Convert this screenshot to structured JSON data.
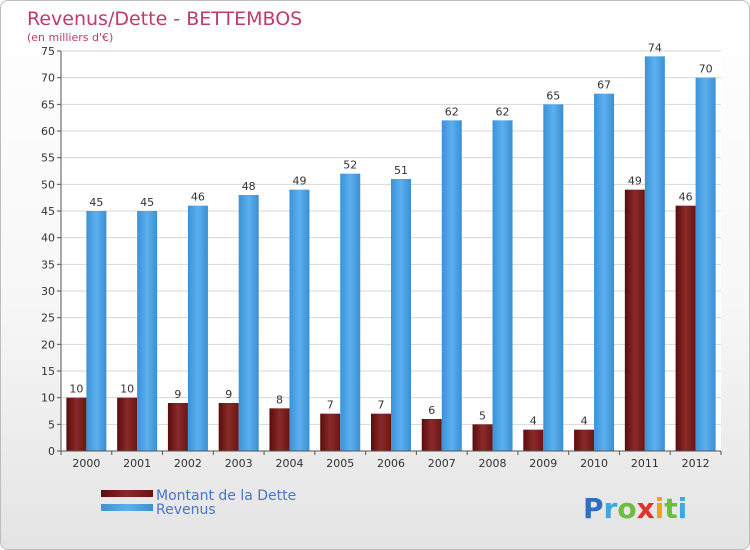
{
  "chart_data": {
    "type": "bar",
    "title": "Revenus/Dette - BETTEMBOS",
    "subtitle": "(en milliers d'€)",
    "categories": [
      "2000",
      "2001",
      "2002",
      "2003",
      "2004",
      "2005",
      "2006",
      "2007",
      "2008",
      "2009",
      "2010",
      "2011",
      "2012"
    ],
    "series": [
      {
        "name": "Montant de la Dette",
        "values": [
          10,
          10,
          9,
          9,
          8,
          7,
          7,
          6,
          5,
          4,
          4,
          49,
          46
        ],
        "color": "#7a1a1a"
      },
      {
        "name": "Revenus",
        "values": [
          45,
          45,
          46,
          48,
          49,
          52,
          51,
          62,
          62,
          65,
          67,
          74,
          70
        ],
        "color": "#4aa3e6"
      }
    ],
    "ylim": [
      0,
      75
    ],
    "yticks": [
      0,
      5,
      10,
      15,
      20,
      25,
      30,
      35,
      40,
      45,
      50,
      55,
      60,
      65,
      70,
      75
    ],
    "grid": true,
    "legend_position": "bottom-left"
  },
  "logo_text": "Proxiti"
}
